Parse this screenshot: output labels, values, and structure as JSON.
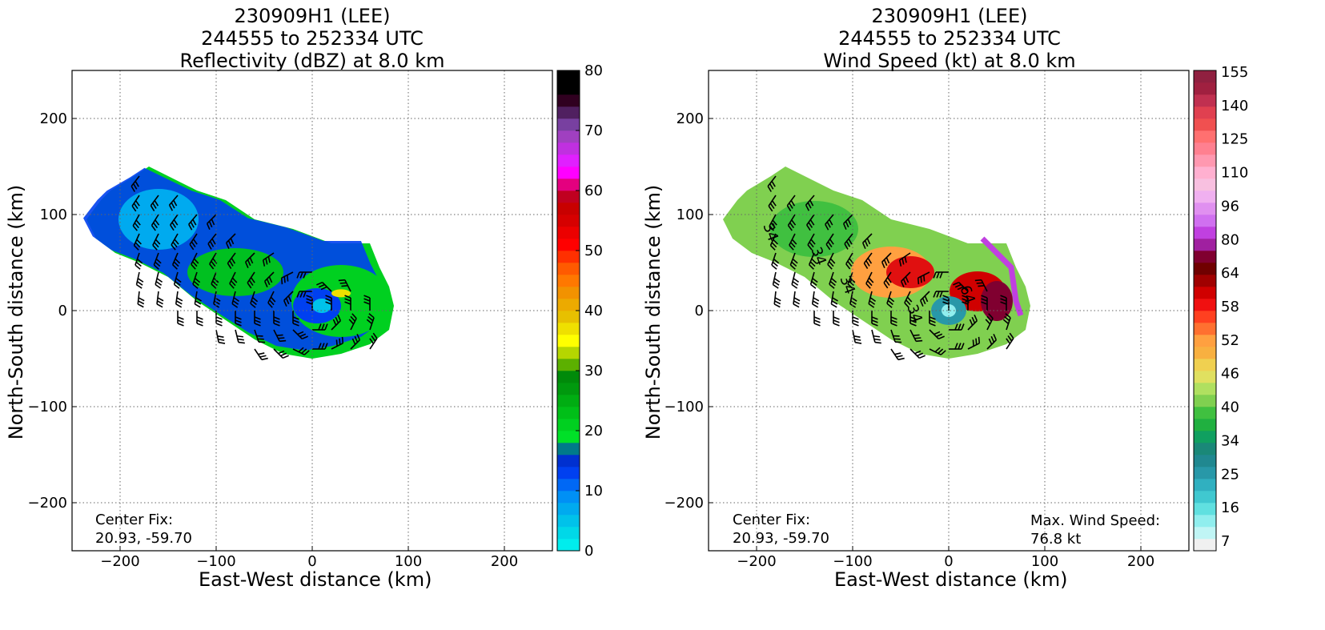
{
  "chart_data": [
    {
      "type": "heatmap",
      "title_lines": [
        "230909H1 (LEE)",
        "244555 to 252334 UTC",
        "Reflectivity (dBZ) at 8.0 km"
      ],
      "xlabel": "East-West distance (km)",
      "ylabel": "North-South distance (km)",
      "xlim": [
        -250,
        250
      ],
      "ylim": [
        -250,
        250
      ],
      "xticks": [
        -200,
        -100,
        0,
        100,
        200
      ],
      "yticks": [
        -200,
        -100,
        0,
        100,
        200
      ],
      "grid": true,
      "colorbar": {
        "min": 0,
        "max": 80,
        "ticks": [
          0,
          10,
          20,
          30,
          40,
          50,
          60,
          70,
          80
        ],
        "colors": [
          "#00eded",
          "#00d8e8",
          "#00c2ea",
          "#00aaef",
          "#0090f5",
          "#0068f5",
          "#0040f0",
          "#0030d0",
          "#007a8a",
          "#00e028",
          "#00d020",
          "#00bf18",
          "#00ad12",
          "#00990e",
          "#008a0a",
          "#5cb000",
          "#b5d600",
          "#ffff00",
          "#efe000",
          "#e7c000",
          "#ecaa00",
          "#f29200",
          "#ff7800",
          "#ff5a00",
          "#ff3000",
          "#ff0000",
          "#ec0000",
          "#d60000",
          "#c80000",
          "#c00020",
          "#e4007f",
          "#ff00ff",
          "#e020ff",
          "#c030e0",
          "#a040c0",
          "#7840a0",
          "#502060",
          "#300020",
          "#000000",
          "#000000"
        ]
      },
      "storm": {
        "center_km": [
          0,
          0
        ],
        "field_values": "reflectivity mostly 10-25 dBZ, max near 35 dBZ near center"
      },
      "annotations": [
        "Center Fix:",
        "20.93, -59.70"
      ]
    },
    {
      "type": "heatmap",
      "title_lines": [
        "230909H1 (LEE)",
        "244555 to 252334 UTC",
        "Wind Speed (kt) at 8.0 km"
      ],
      "xlabel": "East-West distance (km)",
      "ylabel": "North-South distance (km)",
      "xlim": [
        -250,
        250
      ],
      "ylim": [
        -250,
        250
      ],
      "xticks": [
        -200,
        -100,
        0,
        100,
        200
      ],
      "yticks": [
        -200,
        -100,
        0,
        100,
        200
      ],
      "grid": true,
      "colorbar": {
        "tick_labels": [
          "7",
          "16",
          "25",
          "34",
          "40",
          "46",
          "52",
          "58",
          "64",
          "80",
          "96",
          "110",
          "125",
          "140",
          "155"
        ],
        "colors": [
          "#f0f0f0",
          "#c0f5f5",
          "#90eeee",
          "#60e0e0",
          "#40c8d0",
          "#30b0c0",
          "#2898a8",
          "#208890",
          "#1a8878",
          "#10a060",
          "#20b040",
          "#40c040",
          "#80d050",
          "#b0e060",
          "#e0e060",
          "#f0d050",
          "#f8b040",
          "#ffa040",
          "#ff7030",
          "#ff4020",
          "#f01010",
          "#d00000",
          "#a00000",
          "#700000",
          "#800030",
          "#a020a0",
          "#c040e0",
          "#d070f0",
          "#e090f0",
          "#f0b0f0",
          "#f8c0e0",
          "#ffb0d0",
          "#ff98b0",
          "#ff8090",
          "#ff7070",
          "#f05050",
          "#e04050",
          "#c03050",
          "#a02040",
          "#902040"
        ]
      },
      "annotations": [
        "Center Fix:",
        "20.93, -59.70",
        "Max. Wind Speed:",
        "76.8 kt"
      ],
      "contour_labels": [
        "34",
        "34",
        "34",
        "34",
        "64"
      ]
    }
  ]
}
